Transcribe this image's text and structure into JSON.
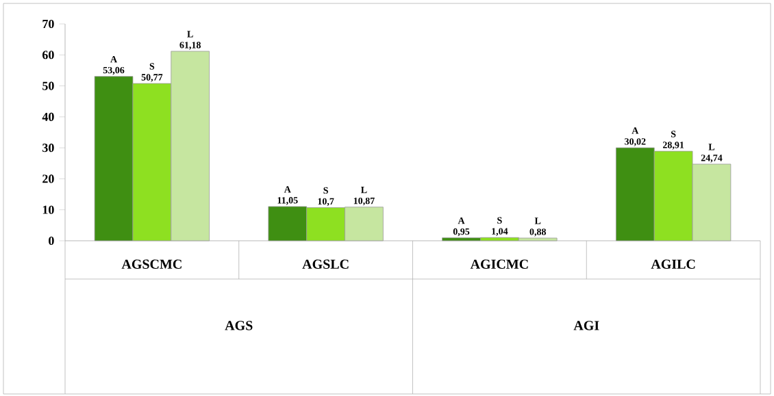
{
  "chart_data": {
    "type": "bar",
    "categories": [
      "AGSCMC",
      "AGSLC",
      "AGICMC",
      "AGILC"
    ],
    "ylim": [
      0,
      70
    ],
    "yticks": [
      0,
      10,
      20,
      30,
      40,
      50,
      60,
      70
    ],
    "series": [
      {
        "name": "A",
        "color": "#3f8f12",
        "values": [
          53.06,
          11.05,
          0.95,
          30.02
        ],
        "value_labels": [
          "53,06",
          "11,05",
          "0,95",
          "30,02"
        ]
      },
      {
        "name": "S",
        "color": "#8ee021",
        "values": [
          50.77,
          10.7,
          1.04,
          28.91
        ],
        "value_labels": [
          "50,77",
          "10,7",
          "1,04",
          "28,91"
        ]
      },
      {
        "name": "L",
        "color": "#c6e6a0",
        "values": [
          61.18,
          10.87,
          0.88,
          24.74
        ],
        "value_labels": [
          "61,18",
          "10,87",
          "0,88",
          "24,74"
        ]
      }
    ],
    "annotations": [
      {
        "text": "AGS"
      },
      {
        "text": "AGI"
      }
    ]
  }
}
